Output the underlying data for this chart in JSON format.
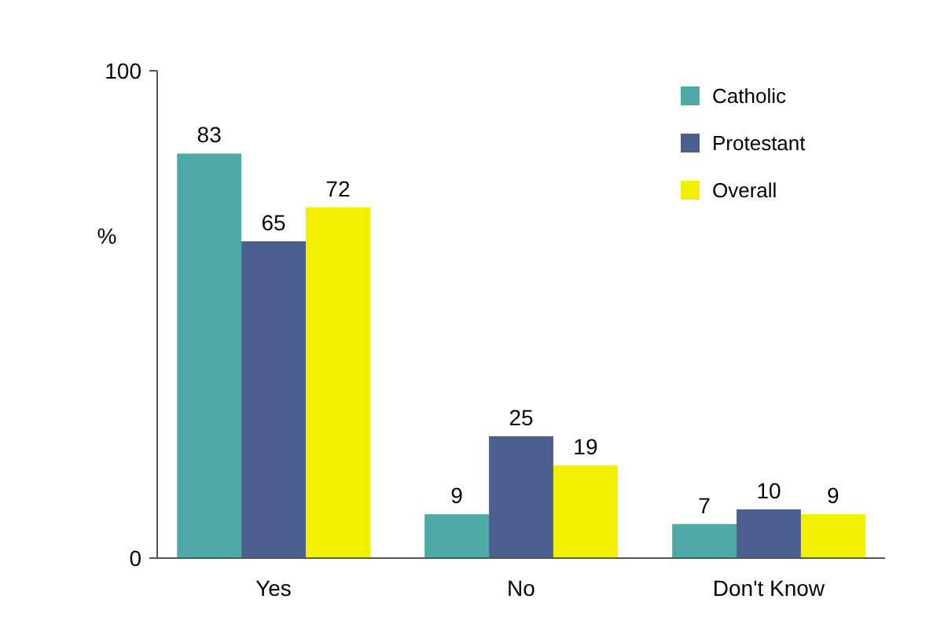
{
  "chart_data": {
    "type": "bar",
    "ylabel": "%",
    "categories": [
      "Yes",
      "No",
      "Don't Know"
    ],
    "series": [
      {
        "name": "Catholic",
        "color": "#4fa9a6",
        "values": [
          83,
          9,
          7
        ]
      },
      {
        "name": "Protestant",
        "color": "#4d5f8e",
        "values": [
          65,
          25,
          10
        ]
      },
      {
        "name": "Overall",
        "color": "#f2f000",
        "values": [
          72,
          19,
          9
        ]
      }
    ],
    "ylim": [
      0,
      100
    ],
    "yticks": [
      0,
      100
    ],
    "data_labels": true,
    "legend": "top right",
    "grid": false
  }
}
